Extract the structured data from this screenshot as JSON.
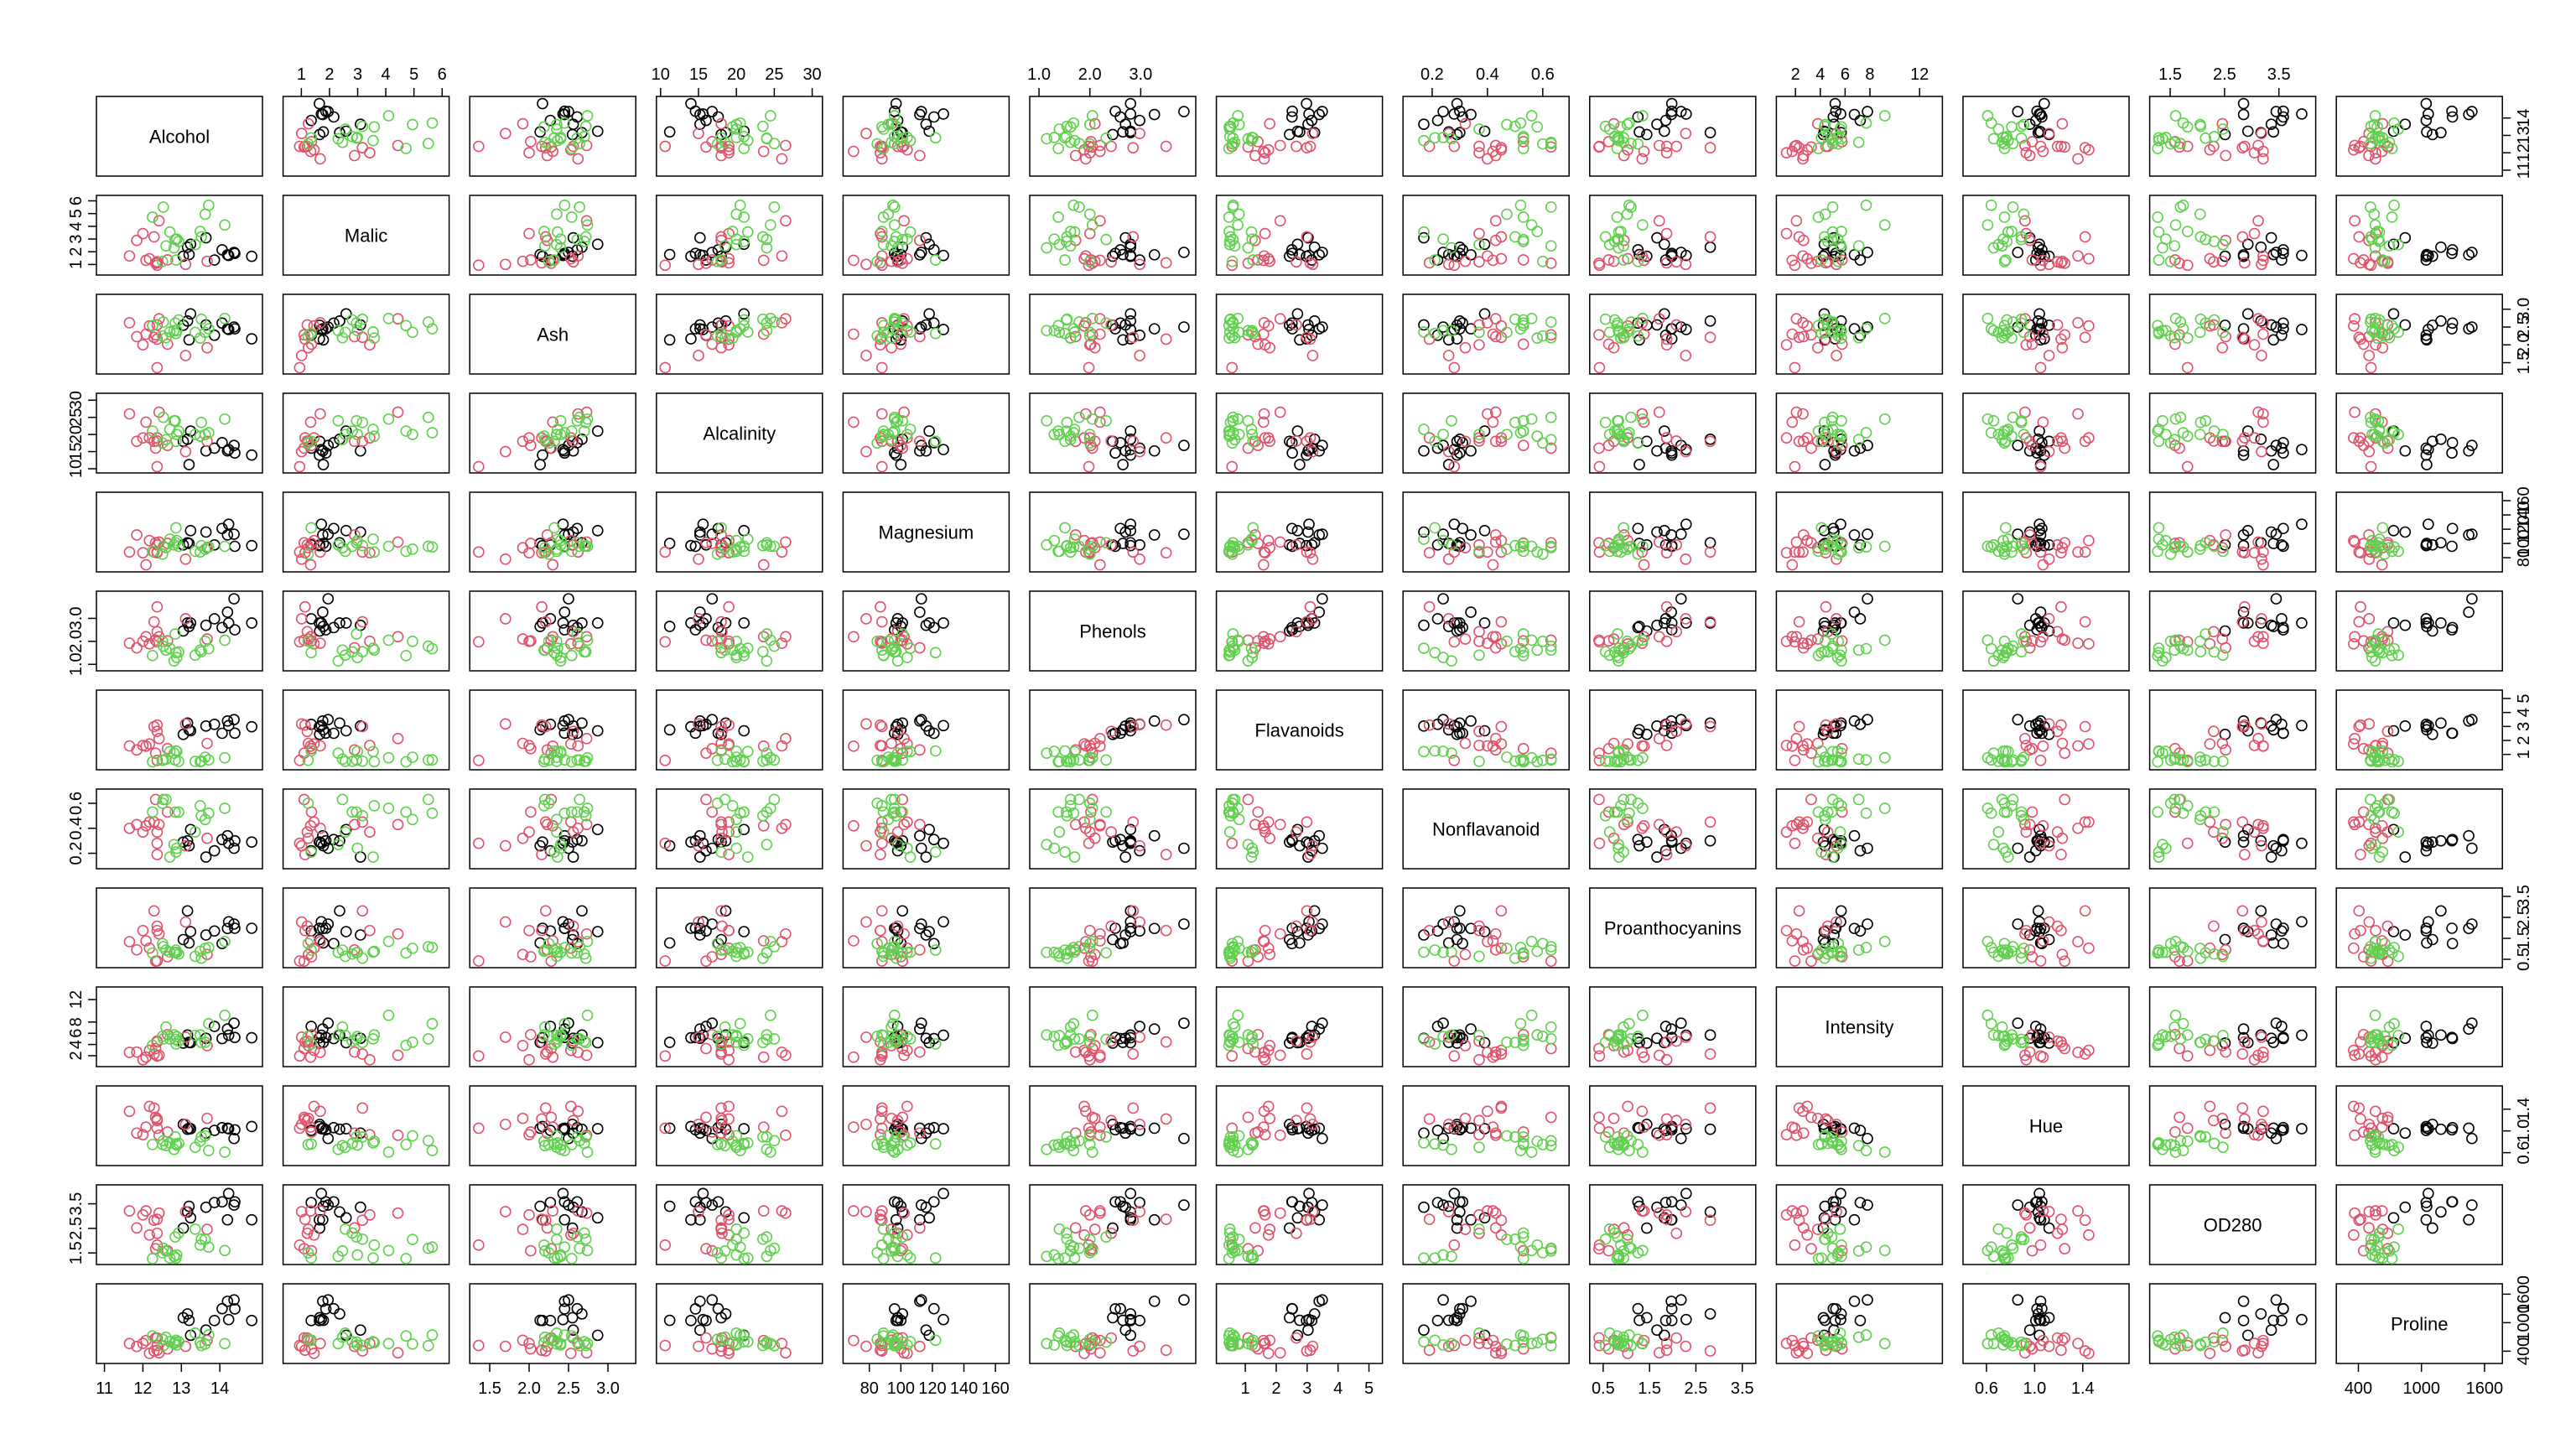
{
  "chart_data": {
    "type": "scatter-matrix",
    "variables": [
      {
        "label": "Alcohol",
        "lim": [
          10.9,
          15.0
        ],
        "ticks": [
          11,
          12,
          13,
          14
        ]
      },
      {
        "label": "Malic",
        "lim": [
          0.5,
          6.1
        ],
        "ticks": [
          1,
          2,
          3,
          4,
          5,
          6
        ]
      },
      {
        "label": "Ash",
        "lim": [
          1.3,
          3.3
        ],
        "ticks": [
          1.5,
          {
            "value": 2,
            "label": "2.0"
          },
          2.5,
          {
            "value": 3,
            "label": "3.0"
          }
        ]
      },
      {
        "label": "Alcalinity",
        "lim": [
          10,
          30.8
        ],
        "ticks": [
          10,
          15,
          20,
          25,
          30
        ]
      },
      {
        "label": "Magnesium",
        "lim": [
          66,
          166
        ],
        "ticks": [
          80,
          100,
          120,
          140,
          160
        ]
      },
      {
        "label": "Phenols",
        "lim": [
          0.9,
          4.0
        ],
        "ticks": [
          {
            "value": 1,
            "label": "1.0"
          },
          {
            "value": 2,
            "label": "2.0"
          },
          {
            "value": 3,
            "label": "3.0"
          }
        ]
      },
      {
        "label": "Flavanoids",
        "lim": [
          0.2,
          5.3
        ],
        "ticks": [
          1,
          2,
          3,
          4,
          5
        ]
      },
      {
        "label": "Nonflavanoid",
        "lim": [
          0.11,
          0.68
        ],
        "ticks": [
          0.2,
          0.4,
          0.6
        ]
      },
      {
        "label": "Proanthocyanins",
        "lim": [
          0.3,
          3.7
        ],
        "ticks": [
          0.5,
          1.5,
          2.5,
          3.5
        ]
      },
      {
        "label": "Intensity",
        "lim": [
          0.8,
          13.5
        ],
        "ticks": [
          2,
          4,
          6,
          8,
          12
        ]
      },
      {
        "label": "Hue",
        "lim": [
          0.44,
          1.75
        ],
        "ticks": [
          0.6,
          {
            "value": 1,
            "label": "1.0"
          },
          1.4
        ]
      },
      {
        "label": "OD280",
        "lim": [
          1.2,
          4.1
        ],
        "ticks": [
          1.5,
          2.5,
          3.5
        ]
      },
      {
        "label": "Proline",
        "lim": [
          230,
          1730
        ],
        "ticks": [
          400,
          1000,
          1600
        ]
      }
    ],
    "series": [
      {
        "color": "#000000",
        "values": [
          [
            14.23,
            1.71,
            2.43,
            15.6,
            127,
            2.8,
            3.06,
            0.28,
            2.29,
            5.64,
            1.04,
            3.92,
            1065
          ],
          [
            13.2,
            1.78,
            2.14,
            11.2,
            100,
            2.65,
            2.76,
            0.26,
            1.28,
            4.38,
            1.05,
            3.4,
            1050
          ],
          [
            13.16,
            2.36,
            2.67,
            18.6,
            101,
            2.8,
            3.24,
            0.3,
            2.81,
            5.68,
            1.03,
            3.17,
            1185
          ],
          [
            14.37,
            1.95,
            2.5,
            16.8,
            113,
            3.85,
            3.49,
            0.24,
            2.18,
            7.8,
            0.86,
            3.45,
            1480
          ],
          [
            13.24,
            2.59,
            2.87,
            21.0,
            118,
            2.8,
            2.69,
            0.39,
            1.82,
            4.32,
            1.04,
            2.93,
            735
          ],
          [
            14.2,
            1.76,
            2.45,
            15.2,
            112,
            3.27,
            3.39,
            0.34,
            1.97,
            6.75,
            1.05,
            2.85,
            1450
          ],
          [
            14.39,
            1.87,
            2.45,
            14.6,
            96,
            2.5,
            2.52,
            0.3,
            1.98,
            5.25,
            1.02,
            3.58,
            1290
          ],
          [
            14.06,
            2.15,
            2.61,
            17.6,
            121,
            2.6,
            2.51,
            0.31,
            1.25,
            5.05,
            1.06,
            3.58,
            1295
          ],
          [
            13.86,
            1.35,
            2.27,
            16.0,
            98,
            2.98,
            3.15,
            0.22,
            1.85,
            7.22,
            1.01,
            3.55,
            1045
          ],
          [
            13.05,
            1.65,
            2.55,
            18.0,
            98,
            2.45,
            2.43,
            0.29,
            1.44,
            4.25,
            1.12,
            2.51,
            1105
          ],
          [
            13.64,
            3.1,
            2.56,
            15.2,
            116,
            2.7,
            3.03,
            0.17,
            1.66,
            5.1,
            0.96,
            3.36,
            845
          ],
          [
            14.83,
            1.64,
            2.17,
            14.0,
            97,
            2.8,
            2.98,
            0.29,
            1.98,
            5.2,
            1.08,
            2.85,
            1045
          ]
        ]
      },
      {
        "color": "#DF536B",
        "values": [
          [
            12.37,
            0.94,
            1.36,
            10.6,
            88,
            1.98,
            0.57,
            0.28,
            0.42,
            1.95,
            1.05,
            1.82,
            520
          ],
          [
            12.33,
            1.1,
            2.28,
            16.0,
            101,
            2.05,
            1.09,
            0.63,
            0.41,
            3.27,
            1.25,
            1.67,
            680
          ],
          [
            12.64,
            1.36,
            2.02,
            16.8,
            100,
            2.02,
            1.41,
            0.53,
            0.62,
            5.75,
            0.98,
            1.59,
            450
          ],
          [
            13.67,
            1.25,
            1.92,
            18.0,
            94,
            2.1,
            1.79,
            0.32,
            0.73,
            3.8,
            1.23,
            2.46,
            630
          ],
          [
            12.37,
            1.13,
            2.16,
            19.0,
            87,
            3.5,
            3.1,
            0.19,
            1.87,
            4.45,
            1.22,
            2.87,
            420
          ],
          [
            12.17,
            1.45,
            2.53,
            19.0,
            104,
            1.89,
            1.75,
            0.45,
            1.03,
            2.95,
            1.45,
            2.23,
            355
          ],
          [
            12.37,
            1.21,
            2.56,
            18.1,
            98,
            2.42,
            2.65,
            0.37,
            2.08,
            4.6,
            1.19,
            2.3,
            678
          ],
          [
            13.11,
            1.01,
            1.7,
            15.0,
            78,
            2.98,
            3.18,
            0.26,
            2.28,
            5.3,
            1.12,
            3.18,
            502
          ],
          [
            12.08,
            1.33,
            2.3,
            23.6,
            70,
            2.2,
            1.59,
            0.42,
            1.38,
            1.74,
            1.07,
            3.21,
            625
          ],
          [
            11.84,
            2.89,
            2.23,
            18.0,
            112,
            1.72,
            1.32,
            0.43,
            0.95,
            2.65,
            0.96,
            2.52,
            500
          ],
          [
            12.0,
            3.43,
            2.0,
            19.0,
            87,
            2.0,
            1.64,
            0.37,
            1.87,
            1.28,
            0.93,
            3.05,
            564
          ],
          [
            12.29,
            3.17,
            2.21,
            18.0,
            88,
            2.85,
            2.99,
            0.45,
            2.81,
            2.3,
            1.42,
            2.83,
            406
          ],
          [
            11.65,
            1.67,
            2.62,
            26.0,
            88,
            1.92,
            1.61,
            0.4,
            1.34,
            2.6,
            1.36,
            3.21,
            562
          ],
          [
            12.42,
            4.43,
            2.73,
            26.5,
            102,
            2.2,
            2.13,
            0.43,
            1.71,
            2.08,
            0.92,
            3.12,
            365
          ]
        ]
      },
      {
        "color": "#61D04F",
        "values": [
          [
            12.86,
            1.35,
            2.32,
            18.0,
            122,
            1.51,
            1.25,
            0.21,
            0.94,
            4.1,
            0.76,
            1.29,
            630
          ],
          [
            12.88,
            2.99,
            2.4,
            20.0,
            104,
            1.3,
            1.22,
            0.24,
            0.83,
            5.4,
            0.74,
            1.42,
            530
          ],
          [
            12.81,
            2.31,
            2.4,
            24.0,
            98,
            1.15,
            1.09,
            0.27,
            0.83,
            5.7,
            0.66,
            1.36,
            560
          ],
          [
            12.7,
            3.55,
            2.36,
            21.5,
            106,
            1.7,
            1.2,
            0.17,
            0.84,
            5.0,
            0.78,
            1.29,
            600
          ],
          [
            12.51,
            1.24,
            2.25,
            17.5,
            85,
            2.0,
            0.58,
            0.6,
            1.25,
            5.45,
            0.75,
            1.51,
            650
          ],
          [
            12.6,
            2.46,
            2.2,
            18.5,
            94,
            1.62,
            0.66,
            0.63,
            0.94,
            7.1,
            0.73,
            1.58,
            695
          ],
          [
            12.25,
            4.72,
            2.54,
            21.0,
            89,
            1.38,
            0.47,
            0.53,
            0.8,
            3.85,
            0.75,
            1.27,
            720
          ],
          [
            12.53,
            5.51,
            2.64,
            25.0,
            96,
            1.79,
            0.6,
            0.63,
            1.1,
            5.0,
            0.82,
            1.69,
            515
          ],
          [
            13.49,
            3.59,
            2.19,
            19.5,
            88,
            1.62,
            0.48,
            0.58,
            0.88,
            5.7,
            0.81,
            1.82,
            580
          ],
          [
            12.84,
            2.96,
            2.61,
            24.0,
            101,
            2.32,
            0.6,
            0.53,
            0.81,
            4.92,
            0.89,
            2.15,
            590
          ],
          [
            12.93,
            2.81,
            2.7,
            21.0,
            96,
            1.54,
            0.5,
            0.53,
            0.75,
            4.6,
            0.77,
            2.31,
            600
          ],
          [
            13.36,
            2.56,
            2.35,
            20.0,
            89,
            1.4,
            0.5,
            0.37,
            0.64,
            5.6,
            0.7,
            2.47,
            780
          ],
          [
            13.52,
            3.17,
            2.72,
            23.5,
            97,
            1.55,
            0.52,
            0.5,
            0.55,
            4.35,
            0.89,
            2.06,
            520
          ],
          [
            13.62,
            4.95,
            2.35,
            20.0,
            92,
            2.0,
            0.8,
            0.47,
            1.02,
            4.4,
            0.91,
            2.05,
            550
          ],
          [
            14.13,
            4.1,
            2.74,
            24.5,
            96,
            2.05,
            0.76,
            0.56,
            1.35,
            9.2,
            0.61,
            1.6,
            560
          ],
          [
            13.71,
            5.65,
            2.45,
            20.5,
            95,
            1.68,
            0.61,
            0.52,
            1.06,
            7.7,
            0.64,
            1.74,
            740
          ]
        ]
      }
    ]
  }
}
